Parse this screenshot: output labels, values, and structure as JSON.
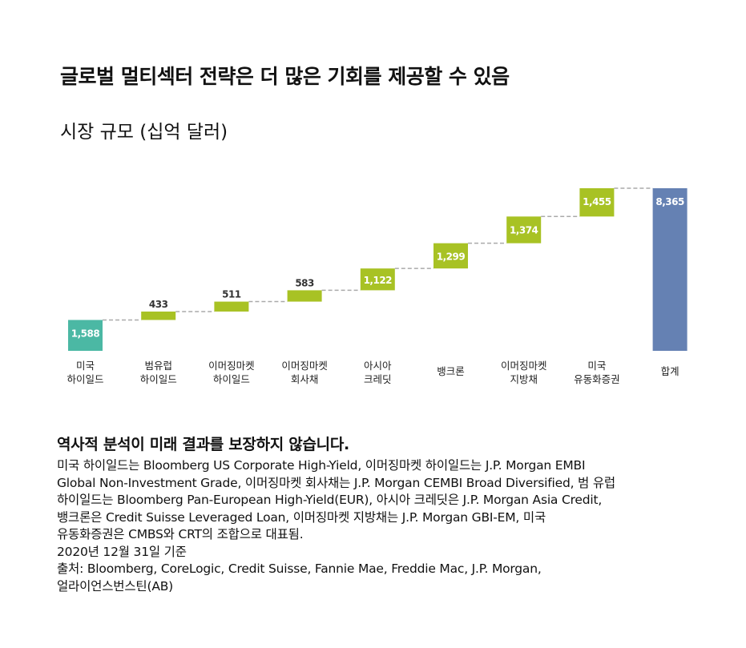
{
  "title": "글로벌 멀티섹터 전략은 더 많은 기회를 제공할 수 있음",
  "subtitle": "시장 규모 (십억 달러)",
  "colors": {
    "first": "#4bb8a4",
    "increment": "#a8c224",
    "total": "#6581b3",
    "connector": "#aaaaaa"
  },
  "chart_data": {
    "type": "bar",
    "subtype": "waterfall",
    "categories": [
      [
        "미국",
        "하이일드"
      ],
      [
        "범유럽",
        "하이일드"
      ],
      [
        "이머징마켓",
        "하이일드"
      ],
      [
        "이머징마켓",
        "회사채"
      ],
      [
        "아시아",
        "크레딧"
      ],
      [
        "뱅크론"
      ],
      [
        "이머징마켓",
        "지방채"
      ],
      [
        "미국",
        "유동화증권"
      ],
      [
        "합계"
      ]
    ],
    "values": [
      1588,
      433,
      511,
      583,
      1122,
      1299,
      1374,
      1455,
      8365
    ],
    "value_labels": [
      "1,588",
      "433",
      "511",
      "583",
      "1,122",
      "1,299",
      "1,374",
      "1,455",
      "8,365"
    ],
    "ylim": [
      0,
      8365
    ],
    "grid": false,
    "legend": false
  },
  "notes": {
    "disclaimer": "역사적 분석이 미래 결과를 보장하지 않습니다.",
    "lines": [
      "미국 하이일드는 Bloomberg US Corporate High-Yield, 이머징마켓 하이일드는 J.P. Morgan EMBI",
      "Global Non-Investment Grade, 이머징마켓 회사채는 J.P. Morgan CEMBI Broad Diversified, 범 유럽",
      "하이일드는 Bloomberg Pan-European High-Yield(EUR), 아시아 크레딧은 J.P. Morgan Asia Credit,",
      "뱅크론은 Credit Suisse Leveraged Loan, 이머징마켓 지방채는 J.P. Morgan GBI-EM, 미국",
      "유동화증권은 CMBS와 CRT의 조합으로 대표됨.",
      "2020년 12월 31일 기준",
      "출처: Bloomberg, CoreLogic, Credit Suisse, Fannie Mae, Freddie Mac, J.P. Morgan,",
      "얼라이언스번스틴(AB)"
    ]
  }
}
